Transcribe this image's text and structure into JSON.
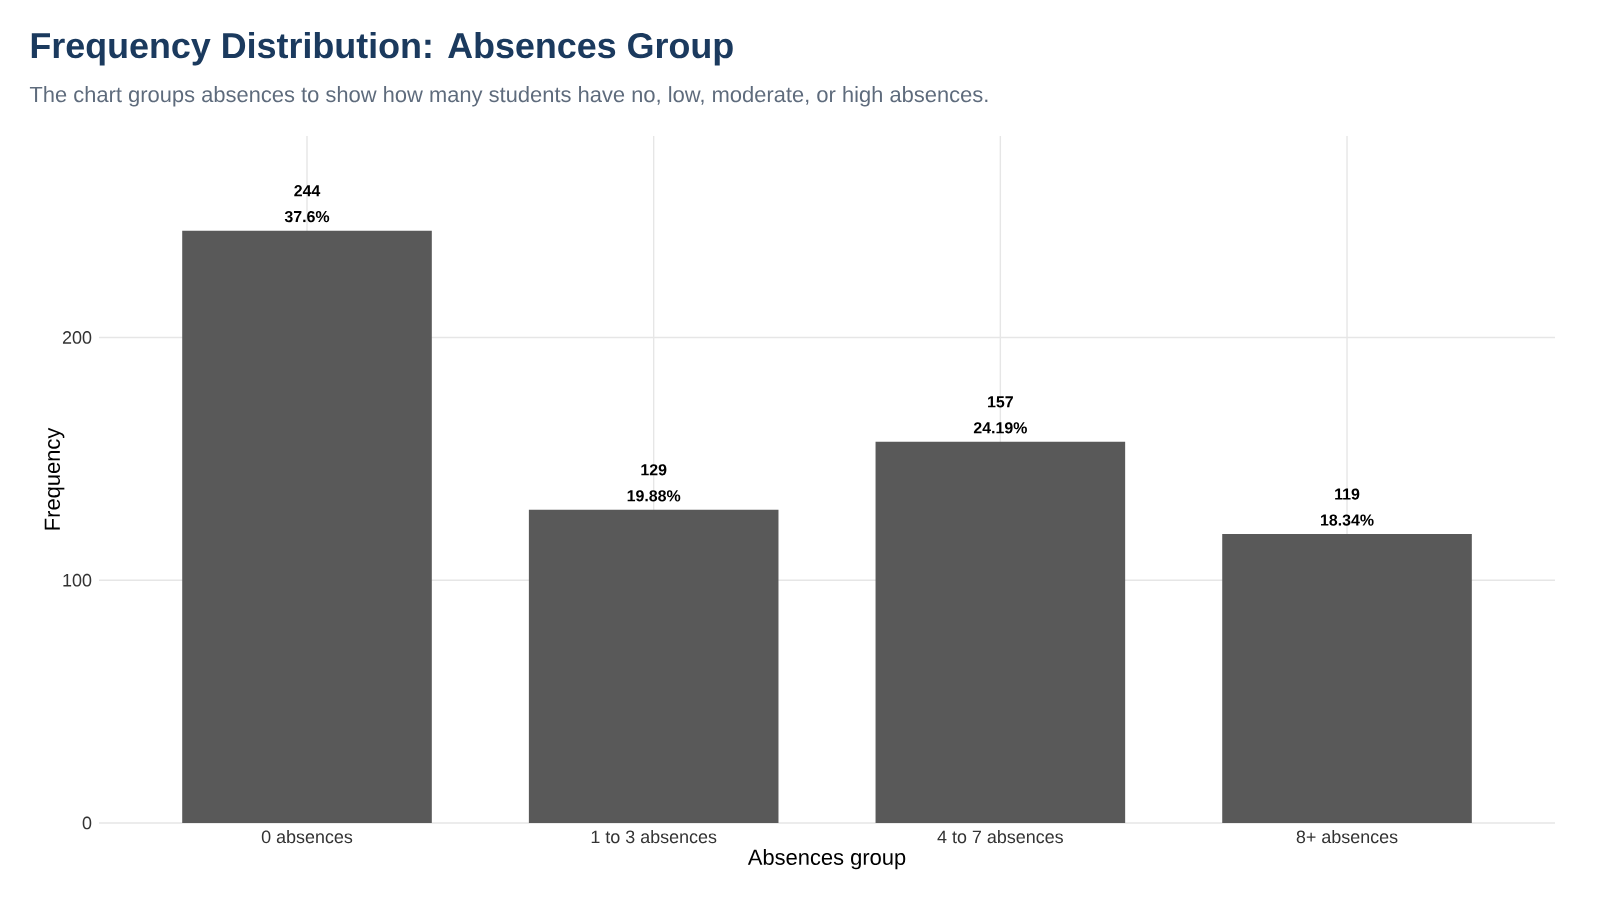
{
  "chart_data": {
    "type": "bar",
    "title": "Frequency Distribution: Absences Group",
    "subtitle": "The chart groups absences to show how many students have no, low, moderate, or high absences.",
    "xlabel": "Absences group",
    "ylabel": "Frequency",
    "categories": [
      "0 absences",
      "1 to 3 absences",
      "4 to 7 absences",
      "8+ absences"
    ],
    "values": [
      244,
      129,
      157,
      119
    ],
    "color": "#595959",
    "ylim": [
      0,
      283
    ],
    "yticks": [
      0,
      100,
      200
    ],
    "grid": true,
    "data_labels": true,
    "annotations": [
      {
        "text": "37.6%",
        "x": "0 absences",
        "y": 244
      },
      {
        "text": "19.88%",
        "x": "1 to 3 absences",
        "y": 129
      },
      {
        "text": "24.19%",
        "x": "4 to 7 absences",
        "y": 157
      },
      {
        "text": "18.34%",
        "x": "8+ absences",
        "y": 119
      }
    ]
  }
}
